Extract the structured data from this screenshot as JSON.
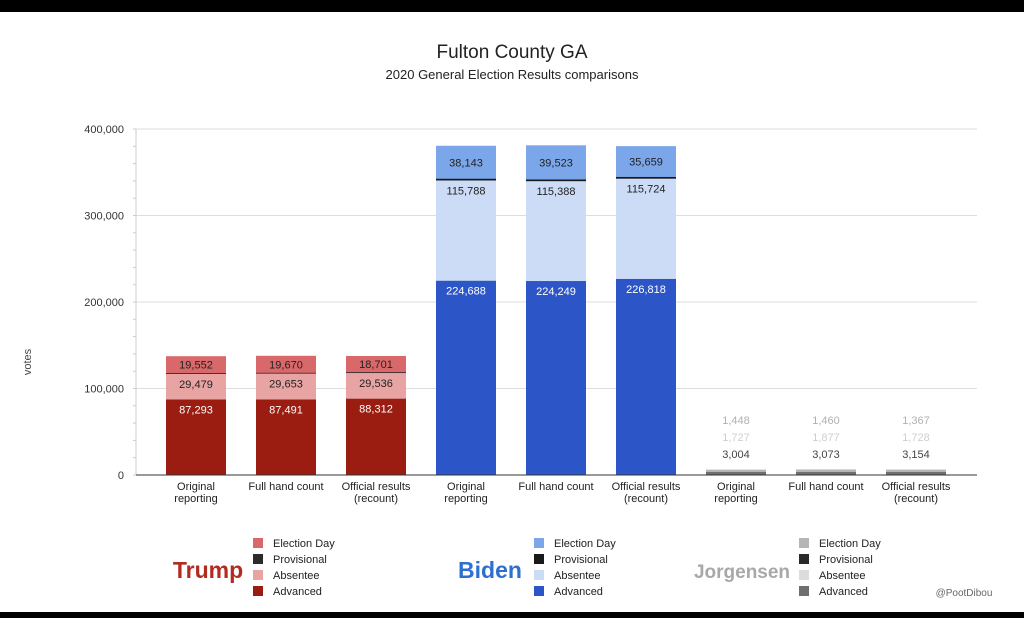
{
  "chart_data": {
    "type": "bar",
    "stacked": true,
    "title": "Fulton County GA",
    "subtitle": "2020 General Election Results comparisons",
    "ylabel": "votes",
    "xlabel": "",
    "ylim": [
      0,
      400000
    ],
    "yticks": [
      0,
      100000,
      200000,
      300000,
      400000
    ],
    "ytick_labels": [
      "0",
      "100,000",
      "200,000",
      "300,000",
      "400,000"
    ],
    "grid": true,
    "categories": [
      "Original reporting",
      "Full hand count",
      "Official results (recount)",
      "Original reporting",
      "Full hand count",
      "Official results (recount)",
      "Original reporting",
      "Full hand count",
      "Official results (recount)"
    ],
    "groups": [
      {
        "candidate": "Trump",
        "name_color": "#b22b20",
        "bars": [
          {
            "category": [
              "Original",
              "reporting"
            ],
            "values": {
              "advanced": 87293,
              "absentee": 29479,
              "provisional": 1000,
              "election_day": 19552
            },
            "labels": {
              "advanced": "87,293",
              "absentee": "29,479",
              "election_day": "19,552"
            }
          },
          {
            "category": [
              "Full hand count"
            ],
            "values": {
              "advanced": 87491,
              "absentee": 29653,
              "provisional": 1000,
              "election_day": 19670
            },
            "labels": {
              "advanced": "87,491",
              "absentee": "29,653",
              "election_day": "19,670"
            }
          },
          {
            "category": [
              "Official results",
              "(recount)"
            ],
            "values": {
              "advanced": 88312,
              "absentee": 29536,
              "provisional": 1000,
              "election_day": 18701
            },
            "labels": {
              "advanced": "88,312",
              "absentee": "29,536",
              "election_day": "18,701"
            }
          }
        ],
        "colors": {
          "election_day": "#d9686a",
          "provisional": "#2b2b2b",
          "absentee": "#e8a4a2",
          "advanced": "#9b1c11"
        },
        "label_colors": {
          "advanced": "#ffffff",
          "absentee": "#222222",
          "election_day": "#222222"
        },
        "legend": [
          "Election Day",
          "Provisional",
          "Absentee",
          "Advanced"
        ]
      },
      {
        "candidate": "Biden",
        "name_color": "#2e6fd0",
        "bars": [
          {
            "category": [
              "Original",
              "reporting"
            ],
            "values": {
              "advanced": 224688,
              "absentee": 115788,
              "provisional": 2000,
              "election_day": 38143
            },
            "labels": {
              "advanced": "224,688",
              "absentee": "115,788",
              "election_day": "38,143"
            }
          },
          {
            "category": [
              "Full hand count"
            ],
            "values": {
              "advanced": 224249,
              "absentee": 115388,
              "provisional": 2000,
              "election_day": 39523
            },
            "labels": {
              "advanced": "224,249",
              "absentee": "115,388",
              "election_day": "39,523"
            }
          },
          {
            "category": [
              "Official results",
              "(recount)"
            ],
            "values": {
              "advanced": 226818,
              "absentee": 115724,
              "provisional": 2000,
              "election_day": 35659
            },
            "labels": {
              "advanced": "226,818",
              "absentee": "115,724",
              "election_day": "35,659"
            }
          }
        ],
        "colors": {
          "election_day": "#7ba7ea",
          "provisional": "#1a1a1a",
          "absentee": "#cddcf6",
          "advanced": "#2c56c8"
        },
        "label_colors": {
          "advanced": "#ffffff",
          "absentee": "#222222",
          "election_day": "#222222"
        },
        "legend": [
          "Election Day",
          "Provisional",
          "Absentee",
          "Advanced"
        ]
      },
      {
        "candidate": "Jorgensen",
        "name_color": "#a8a8a8",
        "bars": [
          {
            "category": [
              "Original",
              "reporting"
            ],
            "values": {
              "advanced": 3004,
              "absentee": 1727,
              "provisional": 0,
              "election_day": 1448
            },
            "labels": {
              "advanced": "3,004",
              "absentee": "1,727",
              "election_day": "1,448"
            }
          },
          {
            "category": [
              "Full hand count"
            ],
            "values": {
              "advanced": 3073,
              "absentee": 1877,
              "provisional": 0,
              "election_day": 1460
            },
            "labels": {
              "advanced": "3,073",
              "absentee": "1,877",
              "election_day": "1,460"
            }
          },
          {
            "category": [
              "Official results",
              "(recount)"
            ],
            "values": {
              "advanced": 3154,
              "absentee": 1728,
              "provisional": 0,
              "election_day": 1367
            },
            "labels": {
              "advanced": "3,154",
              "absentee": "1,728",
              "election_day": "1,367"
            }
          }
        ],
        "colors": {
          "election_day": "#b5b5b5",
          "provisional": "#2b2b2b",
          "absentee": "#dcdcdc",
          "advanced": "#6f6f6f"
        },
        "label_colors": {
          "advanced": "#444444",
          "absentee": "#cfcfcf",
          "election_day": "#b0b0b0"
        },
        "legend": [
          "Election Day",
          "Provisional",
          "Absentee",
          "Advanced"
        ]
      }
    ],
    "credit": "@PootDibou"
  }
}
